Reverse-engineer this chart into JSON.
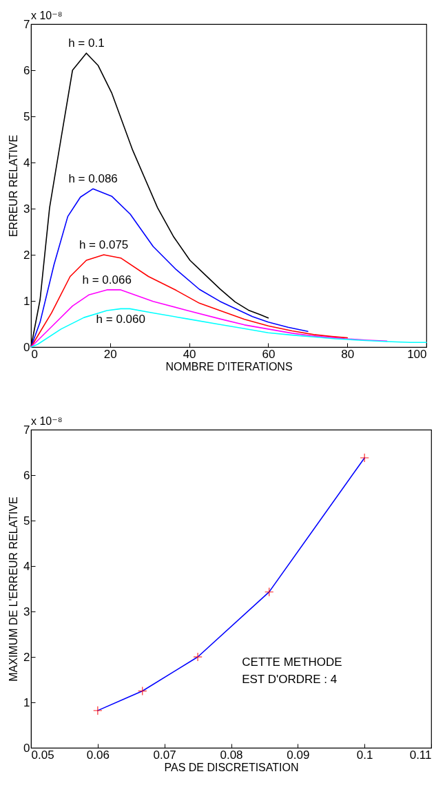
{
  "chart_data": [
    {
      "type": "line",
      "xlabel": "NOMBRE D'ITERATIONS",
      "ylabel": "ERREUR RELATIVE",
      "annotations": [
        "x 10⁻⁸"
      ],
      "xlim": [
        0,
        100
      ],
      "ylim": [
        0,
        7
      ],
      "xticks": [
        0,
        20,
        40,
        60,
        80,
        100
      ],
      "yticks": [
        0,
        1,
        2,
        3,
        4,
        5,
        6,
        7
      ],
      "grid": false,
      "legend": false,
      "marker": "none",
      "line_style": "solid",
      "series": [
        {
          "name": "h = 0.1",
          "color": "#000000",
          "x": [
            0,
            2.3,
            4.7,
            7.6,
            10.5,
            14,
            17,
            20.4,
            25.7,
            32,
            36,
            40.2,
            43,
            47.8,
            51.6,
            55,
            58,
            60
          ],
          "values": [
            0,
            1.03,
            3.02,
            4.52,
            6.0,
            6.37,
            6.1,
            5.51,
            4.27,
            3.02,
            2.4,
            1.88,
            1.65,
            1.26,
            0.98,
            0.8,
            0.7,
            0.63
          ]
        },
        {
          "name": "h = 0.086",
          "color": "#0000ff",
          "x": [
            0,
            2.3,
            5.8,
            9.3,
            12.5,
            15.7,
            20.4,
            25.1,
            30.9,
            36.7,
            42.6,
            47.8,
            52,
            56,
            60,
            65,
            70
          ],
          "values": [
            0,
            0.54,
            1.78,
            2.83,
            3.25,
            3.43,
            3.27,
            2.88,
            2.18,
            1.68,
            1.25,
            0.99,
            0.82,
            0.66,
            0.54,
            0.43,
            0.34
          ]
        },
        {
          "name": "h = 0.075",
          "color": "#ff0000",
          "x": [
            0,
            5.2,
            9.9,
            14,
            18.4,
            22.7,
            29.7,
            36.7,
            42.6,
            47.8,
            54,
            60,
            66,
            71.5,
            76,
            80
          ],
          "values": [
            0,
            0.74,
            1.53,
            1.88,
            2.0,
            1.93,
            1.53,
            1.23,
            0.95,
            0.79,
            0.6,
            0.46,
            0.35,
            0.27,
            0.23,
            0.2
          ]
        },
        {
          "name": "h = 0.066",
          "color": "#ff00ff",
          "x": [
            0,
            5.2,
            10.5,
            14.6,
            19.2,
            22.7,
            30.9,
            39.6,
            47.8,
            54,
            60,
            66,
            71.5,
            79.5,
            85,
            90
          ],
          "values": [
            0,
            0.44,
            0.89,
            1.13,
            1.24,
            1.24,
            0.99,
            0.79,
            0.61,
            0.48,
            0.39,
            0.3,
            0.24,
            0.18,
            0.15,
            0.13
          ]
        },
        {
          "name": "h = 0.060",
          "color": "#00ffff",
          "x": [
            0,
            1.7,
            7.6,
            13.4,
            19.2,
            22.7,
            25,
            30.9,
            39.6,
            47.8,
            54,
            60,
            66,
            71.5,
            77,
            83,
            90,
            95.9,
            100
          ],
          "values": [
            0,
            0.06,
            0.39,
            0.64,
            0.79,
            0.83,
            0.83,
            0.74,
            0.61,
            0.49,
            0.4,
            0.31,
            0.26,
            0.22,
            0.18,
            0.15,
            0.12,
            0.1,
            0.1
          ]
        }
      ]
    },
    {
      "type": "line",
      "xlabel": "PAS DE DISCRETISATION",
      "ylabel": "MAXIMUM DE L'ERREUR RELATIVE",
      "annotations": [
        "x 10⁻⁸",
        "CETTE METHODE\nEST D'ORDRE : 4"
      ],
      "xlim": [
        0.05,
        0.11
      ],
      "ylim": [
        0,
        7
      ],
      "xticks": [
        0.05,
        0.06,
        0.07,
        0.08,
        0.09,
        0.1,
        0.11
      ],
      "yticks": [
        0,
        1,
        2,
        3,
        4,
        5,
        6,
        7
      ],
      "grid": false,
      "legend": false,
      "x": [
        0.06,
        0.0667,
        0.075,
        0.0857,
        0.1
      ],
      "series": [
        {
          "color": "#0000ff",
          "marker": "none",
          "values": [
            0.82,
            1.25,
            2.0,
            3.43,
            6.38
          ]
        },
        {
          "type": "scatter",
          "color": "#ff0000",
          "marker": "cross",
          "values": [
            0.82,
            1.25,
            2.0,
            3.43,
            6.38
          ]
        }
      ]
    }
  ]
}
